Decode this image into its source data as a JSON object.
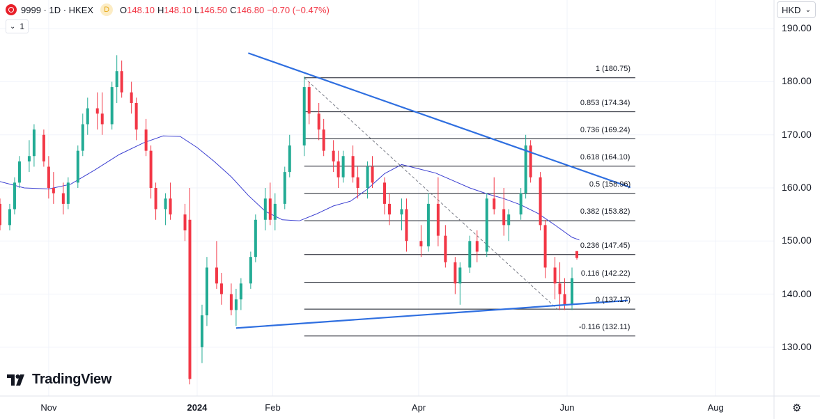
{
  "header": {
    "symbol": "9999 · 1D · HKEX",
    "data_badge": "D",
    "o_label": "O",
    "o_value": "148.10",
    "h_label": "H",
    "h_value": "148.10",
    "l_label": "L",
    "l_value": "146.50",
    "c_label": "C",
    "c_value": "146.80",
    "change": "−0.70 (−0.47%)"
  },
  "indicator_toggle": {
    "count": "1"
  },
  "currency": {
    "label": "HKD"
  },
  "branding": {
    "name": "TradingView"
  },
  "colors": {
    "up": "#22ab94",
    "down": "#f23645",
    "ma": "#3b3fd1",
    "trend": "#2f6fe0",
    "fib": "#131722"
  },
  "chart_data": {
    "type": "candlestick",
    "y_axis": {
      "ticks": [
        "190.00",
        "180.00",
        "170.00",
        "160.00",
        "150.00",
        "140.00",
        "130.00"
      ],
      "values": [
        190,
        180,
        170,
        160,
        150,
        140,
        130
      ],
      "range": [
        120.8,
        195.4
      ]
    },
    "x_axis": {
      "ticks": [
        "Nov",
        "2024",
        "Feb",
        "Apr",
        "Jun",
        "Aug"
      ],
      "tick_dates": [
        "2023-11-01",
        "2024-01-01",
        "2024-02-01",
        "2024-04-01",
        "2024-06-01",
        "2024-08-01"
      ],
      "range": [
        "2023-10-12",
        "2024-08-25"
      ]
    },
    "fib_levels": [
      {
        "ratio": "1",
        "value": 180.75,
        "label": "1 (180.75)"
      },
      {
        "ratio": "0.853",
        "value": 174.34,
        "label": "0.853 (174.34)"
      },
      {
        "ratio": "0.736",
        "value": 169.24,
        "label": "0.736 (169.24)"
      },
      {
        "ratio": "0.618",
        "value": 164.1,
        "label": "0.618 (164.10)"
      },
      {
        "ratio": "0.5",
        "value": 158.96,
        "label": "0.5 (158.96)"
      },
      {
        "ratio": "0.382",
        "value": 153.82,
        "label": "0.382 (153.82)"
      },
      {
        "ratio": "0.236",
        "value": 147.45,
        "label": "0.236 (147.45)"
      },
      {
        "ratio": "0.116",
        "value": 142.22,
        "label": "0.116 (142.22)"
      },
      {
        "ratio": "0",
        "value": 137.17,
        "label": "0 (137.17)"
      },
      {
        "ratio": "-0.116",
        "value": 132.11,
        "label": "-0.116 (132.11)"
      }
    ],
    "fib_start_date": "2024-02-14",
    "fib_end_date": "2024-06-29",
    "trendlines": [
      {
        "name": "upper",
        "points": [
          [
            "2024-01-22",
            185.4
          ],
          [
            "2024-06-27",
            160.1
          ]
        ]
      },
      {
        "name": "lower",
        "points": [
          [
            "2024-01-17",
            133.6
          ],
          [
            "2024-06-26",
            138.8
          ]
        ]
      }
    ],
    "retracement_diagonal": [
      [
        "2024-02-14",
        180.75
      ],
      [
        "2024-05-28",
        137.17
      ]
    ],
    "ma_series": [
      [
        "2023-10-12",
        161.2
      ],
      [
        "2023-10-22",
        160.0
      ],
      [
        "2023-11-01",
        159.8
      ],
      [
        "2023-11-10",
        160.7
      ],
      [
        "2023-11-20",
        163.4
      ],
      [
        "2023-11-30",
        166.3
      ],
      [
        "2023-12-10",
        168.5
      ],
      [
        "2023-12-18",
        169.8
      ],
      [
        "2023-12-25",
        169.7
      ],
      [
        "2024-01-01",
        167.6
      ],
      [
        "2024-01-08",
        165.0
      ],
      [
        "2024-01-15",
        162.1
      ],
      [
        "2024-01-22",
        158.6
      ],
      [
        "2024-01-29",
        155.6
      ],
      [
        "2024-02-05",
        154.0
      ],
      [
        "2024-02-12",
        153.8
      ],
      [
        "2024-02-19",
        155.1
      ],
      [
        "2024-02-26",
        156.6
      ],
      [
        "2024-03-04",
        157.5
      ],
      [
        "2024-03-11",
        159.8
      ],
      [
        "2024-03-18",
        162.7
      ],
      [
        "2024-03-25",
        164.4
      ],
      [
        "2024-04-01",
        163.6
      ],
      [
        "2024-04-08",
        162.8
      ],
      [
        "2024-04-15",
        161.4
      ],
      [
        "2024-04-22",
        160.0
      ],
      [
        "2024-04-29",
        158.9
      ],
      [
        "2024-05-06",
        158.0
      ],
      [
        "2024-05-13",
        156.8
      ],
      [
        "2024-05-20",
        155.2
      ],
      [
        "2024-05-27",
        153.0
      ],
      [
        "2024-06-03",
        150.7
      ],
      [
        "2024-06-06",
        150.2
      ]
    ],
    "candles": [
      [
        "2023-10-12",
        157,
        158,
        152,
        153
      ],
      [
        "2023-10-16",
        153,
        157,
        152,
        156
      ],
      [
        "2023-10-18",
        156,
        162,
        155,
        161
      ],
      [
        "2023-10-20",
        161,
        166,
        160,
        165
      ],
      [
        "2023-10-24",
        165,
        169,
        163,
        166
      ],
      [
        "2023-10-26",
        166,
        172,
        164,
        171
      ],
      [
        "2023-10-30",
        170,
        171,
        164,
        165
      ],
      [
        "2023-11-01",
        164,
        166,
        158,
        160
      ],
      [
        "2023-11-03",
        160,
        163,
        157,
        159
      ],
      [
        "2023-11-07",
        159,
        161,
        155,
        157
      ],
      [
        "2023-11-09",
        157,
        162,
        156,
        161
      ],
      [
        "2023-11-13",
        161,
        168,
        160,
        167
      ],
      [
        "2023-11-15",
        167,
        174,
        166,
        172
      ],
      [
        "2023-11-17",
        172,
        177,
        170,
        175
      ],
      [
        "2023-11-21",
        175,
        178,
        171,
        174
      ],
      [
        "2023-11-23",
        174,
        178,
        170,
        172
      ],
      [
        "2023-11-27",
        172,
        180,
        171,
        179
      ],
      [
        "2023-11-29",
        179,
        185,
        176,
        182
      ],
      [
        "2023-12-01",
        182,
        184,
        177,
        178
      ],
      [
        "2023-12-05",
        178,
        180,
        174,
        176
      ],
      [
        "2023-12-07",
        176,
        177,
        169,
        171
      ],
      [
        "2023-12-11",
        171,
        173,
        166,
        167
      ],
      [
        "2023-12-13",
        167,
        168,
        158,
        160
      ],
      [
        "2023-12-15",
        160,
        161,
        154,
        156
      ],
      [
        "2023-12-19",
        156,
        159,
        153,
        158
      ],
      [
        "2023-12-21",
        158,
        161,
        154,
        155
      ],
      [
        "2023-12-27",
        155,
        157,
        150,
        152
      ],
      [
        "2023-12-29",
        154,
        160,
        123,
        124
      ],
      [
        "2024-01-03",
        130,
        138,
        127,
        136
      ],
      [
        "2024-01-05",
        136,
        147,
        134,
        145
      ],
      [
        "2024-01-09",
        145,
        150,
        141,
        142
      ],
      [
        "2024-01-11",
        142,
        144,
        138,
        140
      ],
      [
        "2024-01-15",
        140,
        142,
        136,
        137
      ],
      [
        "2024-01-17",
        137,
        141,
        134,
        139
      ],
      [
        "2024-01-19",
        139,
        143,
        137,
        142
      ],
      [
        "2024-01-23",
        142,
        148,
        141,
        147
      ],
      [
        "2024-01-25",
        147,
        155,
        146,
        154
      ],
      [
        "2024-01-29",
        154,
        160,
        152,
        158
      ],
      [
        "2024-01-31",
        158,
        161,
        153,
        154
      ],
      [
        "2024-02-02",
        154,
        159,
        152,
        157
      ],
      [
        "2024-02-06",
        157,
        164,
        156,
        163
      ],
      [
        "2024-02-08",
        163,
        170,
        162,
        168
      ],
      [
        "2024-02-14",
        168,
        181,
        166,
        179
      ],
      [
        "2024-02-16",
        179,
        180,
        172,
        174
      ],
      [
        "2024-02-20",
        174,
        176,
        169,
        171
      ],
      [
        "2024-02-22",
        171,
        173,
        166,
        167
      ],
      [
        "2024-02-26",
        167,
        169,
        163,
        165
      ],
      [
        "2024-02-28",
        165,
        167,
        160,
        162
      ],
      [
        "2024-03-01",
        162,
        167,
        161,
        166
      ],
      [
        "2024-03-05",
        166,
        168,
        161,
        162
      ],
      [
        "2024-03-07",
        162,
        164,
        158,
        160
      ],
      [
        "2024-03-11",
        160,
        165,
        158,
        164
      ],
      [
        "2024-03-13",
        164,
        166,
        160,
        161
      ],
      [
        "2024-03-18",
        161,
        162,
        155,
        157
      ],
      [
        "2024-03-20",
        157,
        159,
        153,
        155
      ],
      [
        "2024-03-25",
        155,
        158,
        152,
        156
      ],
      [
        "2024-03-27",
        156,
        158,
        148,
        150
      ],
      [
        "2024-04-02",
        150,
        153,
        147,
        149
      ],
      [
        "2024-04-05",
        149,
        159,
        148,
        157
      ],
      [
        "2024-04-09",
        157,
        162,
        149,
        151
      ],
      [
        "2024-04-12",
        151,
        153,
        145,
        146
      ],
      [
        "2024-04-16",
        146,
        147,
        140,
        142
      ],
      [
        "2024-04-18",
        142,
        146,
        138,
        145
      ],
      [
        "2024-04-22",
        145,
        151,
        144,
        150
      ],
      [
        "2024-04-25",
        150,
        152,
        146,
        148
      ],
      [
        "2024-04-29",
        148,
        159,
        147,
        158
      ],
      [
        "2024-05-02",
        158,
        162,
        155,
        156
      ],
      [
        "2024-05-06",
        156,
        160,
        151,
        153
      ],
      [
        "2024-05-08",
        153,
        156,
        150,
        155
      ],
      [
        "2024-05-13",
        155,
        160,
        154,
        159
      ],
      [
        "2024-05-15",
        159,
        170,
        158,
        168
      ],
      [
        "2024-05-17",
        168,
        169,
        161,
        162
      ],
      [
        "2024-05-21",
        162,
        163,
        152,
        153
      ],
      [
        "2024-05-23",
        153,
        154,
        143,
        145
      ],
      [
        "2024-05-27",
        145,
        147,
        139,
        142
      ],
      [
        "2024-05-29",
        142,
        146,
        137,
        140
      ],
      [
        "2024-05-31",
        140,
        143,
        137,
        138
      ],
      [
        "2024-06-03",
        138,
        145,
        137,
        143
      ],
      [
        "2024-06-05",
        148.1,
        148.1,
        146.5,
        146.8
      ]
    ]
  }
}
